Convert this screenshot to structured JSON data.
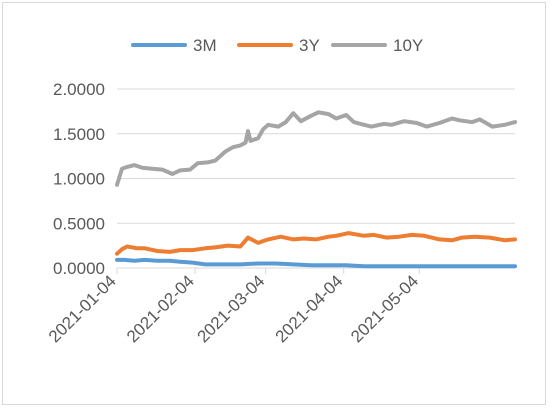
{
  "chart_data": {
    "type": "line",
    "title": "",
    "xlabel": "",
    "ylabel": "",
    "ylim": [
      0,
      2
    ],
    "y_ticks": [
      "0.0000",
      "0.5000",
      "1.0000",
      "1.5000",
      "2.0000"
    ],
    "x_ticks": [
      "2021-01-04",
      "2021-02-04",
      "2021-03-04",
      "2021-04-04",
      "2021-05-04"
    ],
    "x_range": [
      "2021-01-04",
      "2021-06-11"
    ],
    "legend_position": "top-center",
    "grid": "horizontal",
    "series": [
      {
        "name": "3M",
        "color": "#5B9BD5",
        "x": [
          "2021-01-04",
          "2021-01-07",
          "2021-01-11",
          "2021-01-15",
          "2021-01-20",
          "2021-01-25",
          "2021-01-29",
          "2021-02-03",
          "2021-02-08",
          "2021-02-15",
          "2021-02-22",
          "2021-03-01",
          "2021-03-08",
          "2021-03-15",
          "2021-03-22",
          "2021-03-29",
          "2021-04-05",
          "2021-04-12",
          "2021-04-19",
          "2021-04-26",
          "2021-05-03",
          "2021-05-10",
          "2021-05-17",
          "2021-05-24",
          "2021-05-31",
          "2021-06-07",
          "2021-06-11"
        ],
        "values": [
          0.09,
          0.09,
          0.08,
          0.09,
          0.08,
          0.08,
          0.07,
          0.06,
          0.04,
          0.04,
          0.04,
          0.05,
          0.05,
          0.04,
          0.03,
          0.03,
          0.03,
          0.02,
          0.02,
          0.02,
          0.02,
          0.02,
          0.02,
          0.02,
          0.02,
          0.02,
          0.02
        ]
      },
      {
        "name": "3Y",
        "color": "#ED7D31",
        "x": [
          "2021-01-04",
          "2021-01-06",
          "2021-01-08",
          "2021-01-12",
          "2021-01-15",
          "2021-01-20",
          "2021-01-25",
          "2021-01-29",
          "2021-02-03",
          "2021-02-08",
          "2021-02-12",
          "2021-02-17",
          "2021-02-22",
          "2021-02-25",
          "2021-03-01",
          "2021-03-05",
          "2021-03-10",
          "2021-03-15",
          "2021-03-19",
          "2021-03-24",
          "2021-03-29",
          "2021-04-01",
          "2021-04-06",
          "2021-04-12",
          "2021-04-16",
          "2021-04-21",
          "2021-04-26",
          "2021-05-01",
          "2021-05-06",
          "2021-05-12",
          "2021-05-17",
          "2021-05-21",
          "2021-05-26",
          "2021-06-01",
          "2021-06-07",
          "2021-06-11"
        ],
        "values": [
          0.16,
          0.21,
          0.24,
          0.22,
          0.22,
          0.19,
          0.18,
          0.2,
          0.2,
          0.22,
          0.23,
          0.25,
          0.24,
          0.34,
          0.28,
          0.32,
          0.35,
          0.32,
          0.33,
          0.32,
          0.35,
          0.36,
          0.39,
          0.36,
          0.37,
          0.34,
          0.35,
          0.37,
          0.36,
          0.32,
          0.31,
          0.34,
          0.35,
          0.34,
          0.31,
          0.32
        ]
      },
      {
        "name": "10Y",
        "color": "#A5A5A5",
        "x": [
          "2021-01-04",
          "2021-01-06",
          "2021-01-08",
          "2021-01-11",
          "2021-01-14",
          "2021-01-18",
          "2021-01-22",
          "2021-01-26",
          "2021-01-29",
          "2021-02-02",
          "2021-02-05",
          "2021-02-09",
          "2021-02-12",
          "2021-02-16",
          "2021-02-19",
          "2021-02-22",
          "2021-02-24",
          "2021-02-25",
          "2021-02-26",
          "2021-03-01",
          "2021-03-03",
          "2021-03-05",
          "2021-03-09",
          "2021-03-12",
          "2021-03-15",
          "2021-03-18",
          "2021-03-22",
          "2021-03-25",
          "2021-03-29",
          "2021-04-01",
          "2021-04-05",
          "2021-04-08",
          "2021-04-12",
          "2021-04-15",
          "2021-04-20",
          "2021-04-23",
          "2021-04-28",
          "2021-05-03",
          "2021-05-07",
          "2021-05-12",
          "2021-05-17",
          "2021-05-20",
          "2021-05-25",
          "2021-05-28",
          "2021-06-02",
          "2021-06-07",
          "2021-06-11"
        ],
        "values": [
          0.93,
          1.11,
          1.13,
          1.15,
          1.12,
          1.11,
          1.1,
          1.05,
          1.09,
          1.1,
          1.17,
          1.18,
          1.2,
          1.3,
          1.35,
          1.37,
          1.4,
          1.53,
          1.42,
          1.45,
          1.55,
          1.6,
          1.58,
          1.63,
          1.73,
          1.64,
          1.7,
          1.74,
          1.72,
          1.67,
          1.71,
          1.63,
          1.6,
          1.58,
          1.61,
          1.6,
          1.64,
          1.62,
          1.58,
          1.62,
          1.67,
          1.65,
          1.63,
          1.66,
          1.58,
          1.6,
          1.63
        ]
      }
    ]
  }
}
